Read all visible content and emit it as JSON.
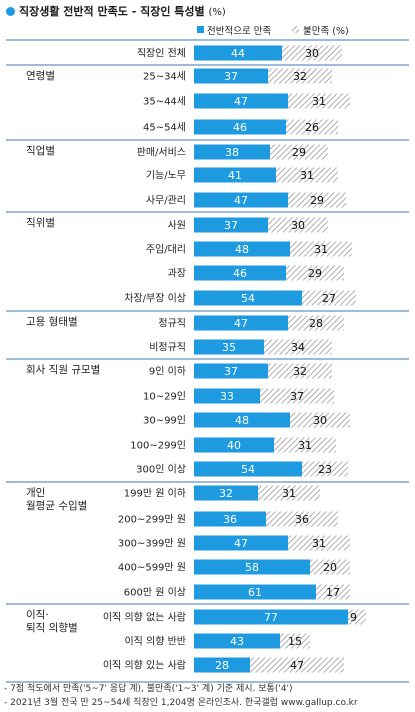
{
  "title": {
    "text": "직장생활 전반적 만족도 - 직장인 특성별",
    "unit": "(%)"
  },
  "colors": {
    "satisfied": "#1e9be0",
    "dissatisfied_hatch": "#9a9a9a",
    "divider": "#3c78b4",
    "title_marker": "#1e9be0"
  },
  "chart_data": {
    "type": "bar",
    "orientation": "horizontal",
    "stacked": true,
    "title": "직장생활 전반적 만족도 - 직장인 특성별 (%)",
    "legend": {
      "placement": "top-right"
    },
    "series": [
      {
        "name": "전반적으로 만족",
        "values": [
          44,
          37,
          47,
          46,
          38,
          41,
          47,
          37,
          48,
          46,
          54,
          47,
          35,
          37,
          33,
          48,
          40,
          54,
          32,
          36,
          47,
          58,
          61,
          77,
          43,
          28
        ]
      },
      {
        "name": "불만족 (%)",
        "values": [
          30,
          32,
          31,
          26,
          29,
          31,
          29,
          30,
          31,
          29,
          27,
          28,
          34,
          32,
          37,
          30,
          31,
          23,
          31,
          36,
          31,
          20,
          17,
          9,
          15,
          47
        ]
      }
    ],
    "categories": [
      "직장인 전체",
      "25~34세",
      "35~44세",
      "45~54세",
      "판매/서비스",
      "기능/노무",
      "사무/관리",
      "사원",
      "주임/대리",
      "과장",
      "차장/부장 이상",
      "정규직",
      "비정규직",
      "9인 이하",
      "10~29인",
      "30~99인",
      "100~299인",
      "300인 이상",
      "199만 원 이하",
      "200~299만 원",
      "300~399만 원",
      "400~599만 원",
      "600만 원 이상",
      "이직 의향 없는 사람",
      "이직 의향 반반",
      "이직 의향 있는 사람"
    ],
    "groups": [
      {
        "label": "",
        "rows": [
          0
        ]
      },
      {
        "label": "연령별",
        "rows": [
          1,
          2,
          3
        ]
      },
      {
        "label": "직업별",
        "rows": [
          4,
          5,
          6
        ]
      },
      {
        "label": "직위별",
        "rows": [
          7,
          8,
          9,
          10
        ]
      },
      {
        "label": "고용 형태별",
        "rows": [
          11,
          12
        ]
      },
      {
        "label": "회사 직원 규모별",
        "rows": [
          13,
          14,
          15,
          16,
          17
        ]
      },
      {
        "label": "개인\n월평균 수입별",
        "rows": [
          18,
          19,
          20,
          21,
          22
        ]
      },
      {
        "label": "이직·\n퇴직 의향별",
        "rows": [
          23,
          24,
          25
        ]
      }
    ]
  },
  "footnotes": [
    "- 7점 척도에서 만족('5~7' 응답 계), 불만족('1~3' 계) 기준 제시. 보통('4')",
    "- 2021년 3월 전국 만 25~54세 직장인 1,204명 온라인조사. 한국갤럽 www.gallup.co.kr"
  ]
}
